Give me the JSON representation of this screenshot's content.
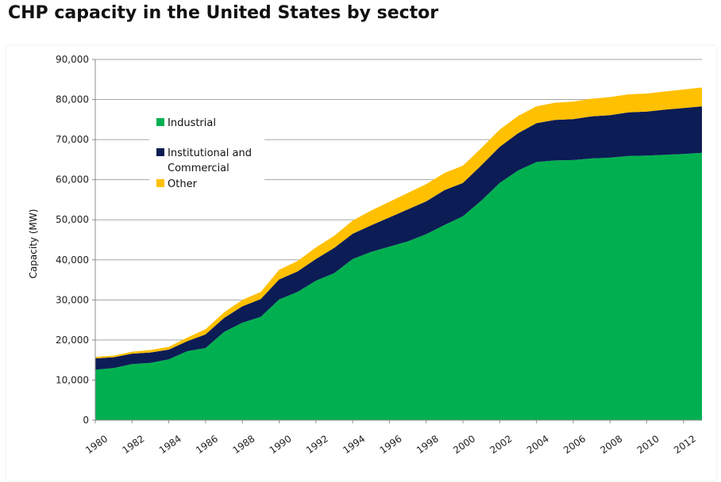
{
  "title": "CHP capacity in the United States by sector",
  "chart_data": {
    "type": "area",
    "stacked": true,
    "xlabel": "",
    "ylabel": "Capacity (MW)",
    "ylim": [
      0,
      90000
    ],
    "yticks": [
      0,
      10000,
      20000,
      30000,
      40000,
      50000,
      60000,
      70000,
      80000,
      90000
    ],
    "ytick_labels": [
      "0",
      "10,000",
      "20,000",
      "30,000",
      "40,000",
      "50,000",
      "60,000",
      "70,000",
      "80,000",
      "90,000"
    ],
    "xlim": [
      1980,
      2013
    ],
    "xtick_labels": [
      "1980",
      "1982",
      "1984",
      "1986",
      "1988",
      "1990",
      "1992",
      "1994",
      "1996",
      "1998",
      "2000",
      "2002",
      "2004",
      "2006",
      "2008",
      "2010",
      "2012"
    ],
    "x": [
      1980,
      1981,
      1982,
      1983,
      1984,
      1985,
      1986,
      1987,
      1988,
      1989,
      1990,
      1991,
      1992,
      1993,
      1994,
      1995,
      1996,
      1997,
      1998,
      1999,
      2000,
      2001,
      2002,
      2003,
      2004,
      2005,
      2006,
      2007,
      2008,
      2009,
      2010,
      2011,
      2012,
      2013
    ],
    "grid": "horizontal",
    "legend_position": "upper-left",
    "series": [
      {
        "name": "Industrial",
        "color": "#00b050",
        "values": [
          12600,
          13000,
          14000,
          14300,
          15200,
          17200,
          18000,
          22000,
          24300,
          25800,
          30100,
          32000,
          34800,
          36700,
          40200,
          42000,
          43300,
          44600,
          46400,
          48700,
          50900,
          54800,
          59200,
          62300,
          64400,
          64800,
          64900,
          65300,
          65500,
          65900,
          66000,
          66200,
          66400,
          66700
        ]
      },
      {
        "name": "Institutional and Commercial",
        "color": "#0c1c55",
        "values": [
          2800,
          2700,
          2600,
          2600,
          2400,
          2500,
          3400,
          3500,
          4100,
          4400,
          5000,
          5100,
          5400,
          6300,
          6300,
          6600,
          7300,
          8000,
          8200,
          8700,
          8300,
          8800,
          9000,
          9300,
          9700,
          10100,
          10200,
          10500,
          10600,
          10900,
          11000,
          11300,
          11500,
          11600
        ]
      },
      {
        "name": "Other",
        "color": "#ffc000",
        "values": [
          400,
          400,
          500,
          600,
          700,
          900,
          1300,
          1400,
          1600,
          1800,
          2400,
          2600,
          2900,
          3000,
          3300,
          3700,
          3900,
          4100,
          4300,
          4300,
          4300,
          4300,
          4300,
          4300,
          4200,
          4300,
          4400,
          4400,
          4500,
          4500,
          4500,
          4500,
          4600,
          4700
        ]
      }
    ]
  }
}
